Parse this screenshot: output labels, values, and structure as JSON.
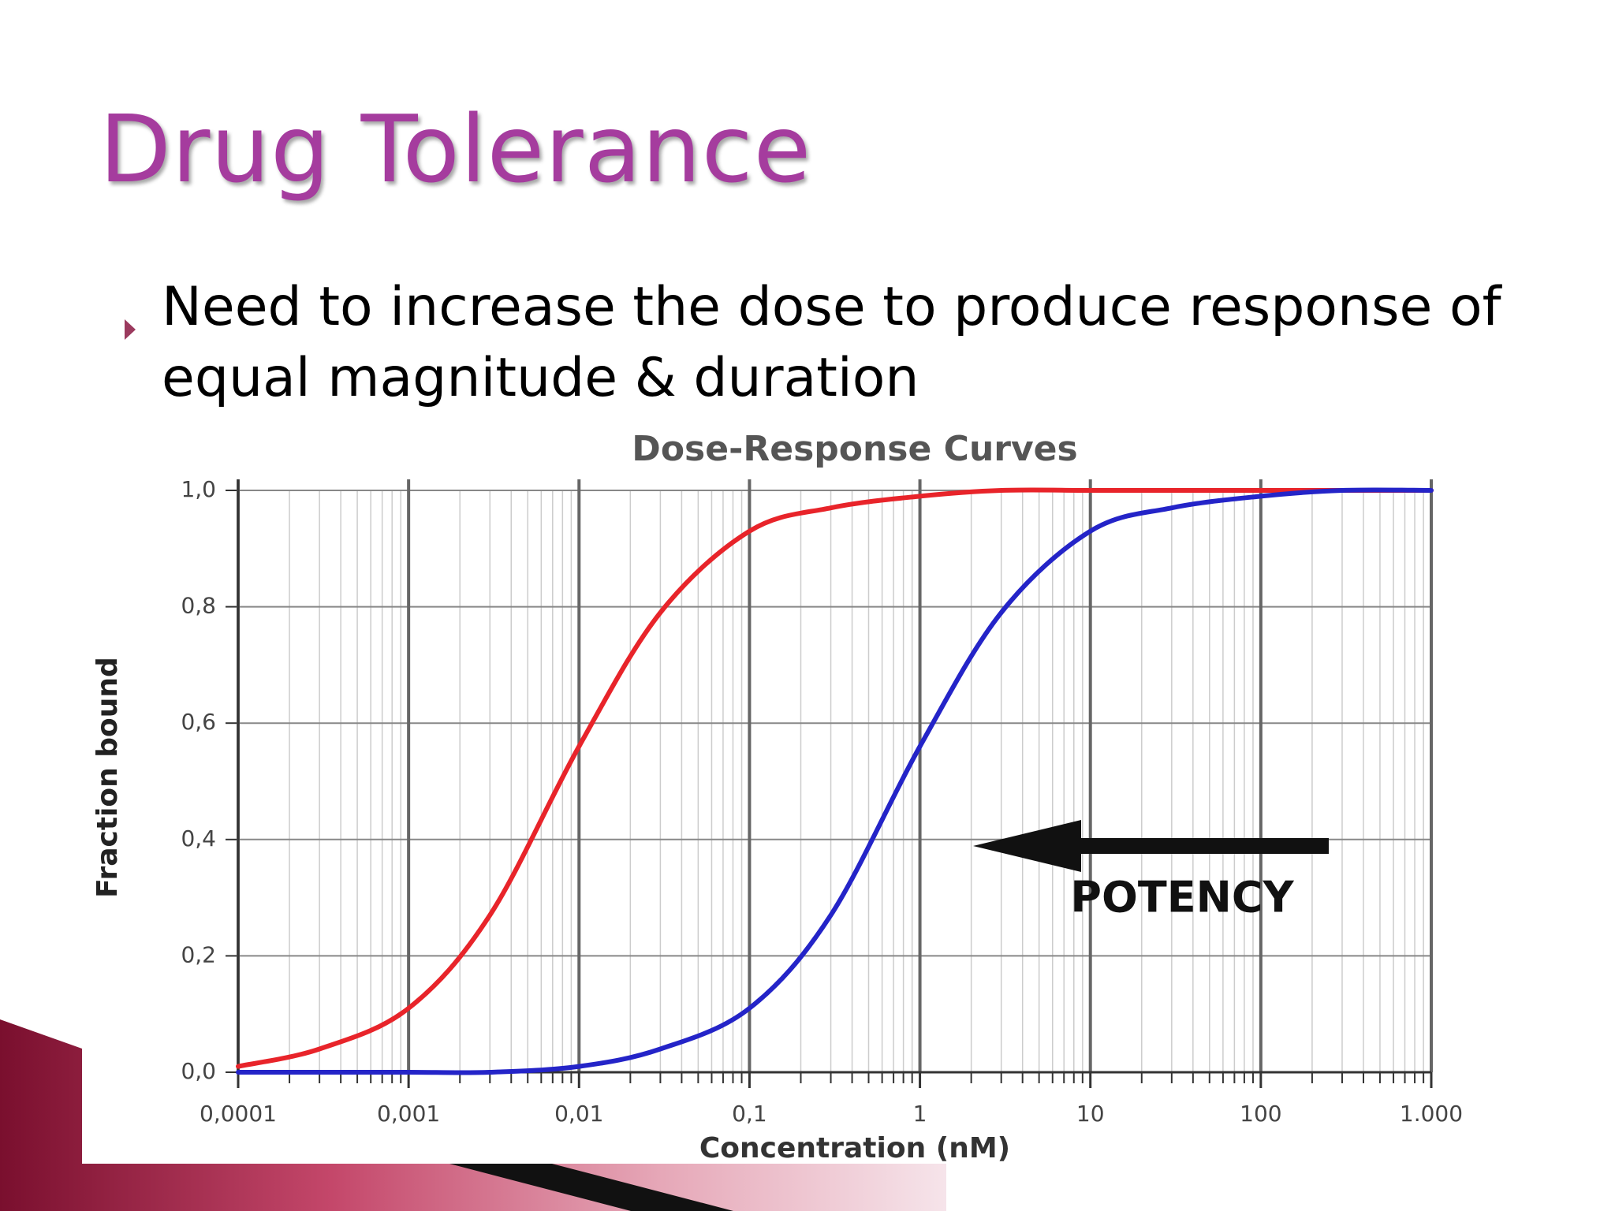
{
  "slide": {
    "title": "Drug Tolerance",
    "bullet": "Need to increase the dose to produce response of equal magnitude & duration"
  },
  "chart_data": {
    "type": "line",
    "title": "Dose-Response Curves",
    "x_label": "Concentration (nM)",
    "y_label": "Fraction bound",
    "xscale": "log",
    "grid": true,
    "x": [
      0.0001,
      0.0003,
      0.001,
      0.003,
      0.01,
      0.03,
      0.1,
      0.3,
      1,
      3,
      10,
      30,
      100,
      300,
      1000
    ],
    "series": [
      {
        "color": "#e8242a",
        "values": [
          0.01,
          0.04,
          0.11,
          0.27,
          0.56,
          0.79,
          0.93,
          0.97,
          0.99,
          1.0,
          1.0,
          1.0,
          1.0,
          1.0,
          1.0
        ]
      },
      {
        "color": "#2424c8",
        "values": [
          0,
          0,
          0,
          0,
          0.01,
          0.04,
          0.11,
          0.27,
          0.56,
          0.79,
          0.93,
          0.97,
          0.99,
          1.0,
          1.0
        ]
      }
    ],
    "xlim": [
      0.0001,
      1000
    ],
    "xticks": [
      {
        "value": 0.0001,
        "label": "0,0001"
      },
      {
        "value": 0.001,
        "label": "0,001"
      },
      {
        "value": 0.01,
        "label": "0,01"
      },
      {
        "value": 0.1,
        "label": "0,1"
      },
      1,
      10,
      100,
      {
        "value": 1000,
        "label": "1.000"
      }
    ],
    "ylim": [
      0,
      1
    ],
    "yticks": [
      {
        "value": 0,
        "label": "0,0"
      },
      {
        "value": 0.2,
        "label": "0,2"
      },
      {
        "value": 0.4,
        "label": "0,4"
      },
      {
        "value": 0.6,
        "label": "0,6"
      },
      {
        "value": 0.8,
        "label": "0,8"
      },
      {
        "value": 1,
        "label": "1,0"
      }
    ],
    "annotation": "POTENCY"
  }
}
